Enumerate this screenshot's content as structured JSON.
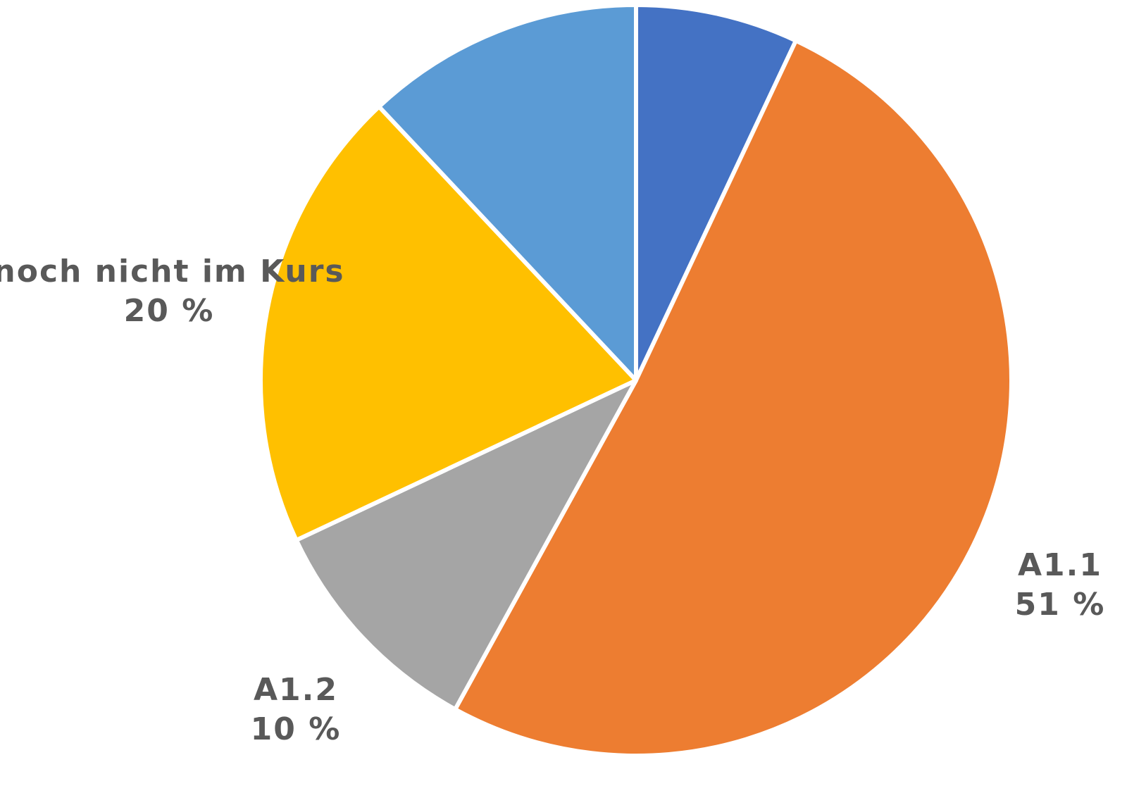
{
  "chart_data": {
    "type": "pie",
    "categories": [
      null,
      "A1.1",
      "A1.2",
      "noch nicht im Kurs",
      null
    ],
    "values": [
      7,
      51,
      10,
      20,
      12
    ],
    "value_labels": [
      null,
      "51 %",
      "10 %",
      "20 %",
      null
    ],
    "colors": [
      "#4472c4",
      "#ed7d31",
      "#a5a5a5",
      "#ffc000",
      "#5b9bd5"
    ]
  }
}
